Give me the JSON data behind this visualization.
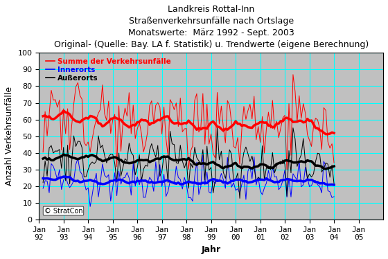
{
  "title_lines": [
    "Landkreis Rottal-Inn",
    "Straßenverkehrsunfälle nach Ortslage",
    "Monatswerte:  März 1992 - Sept. 2003",
    "Original- (Quelle: Bay. LA f. Statistik) u. Trendwerte (eigene Berechnung)"
  ],
  "xlabel": "Jahr",
  "ylabel": "Anzahl Verkehrsunfälle",
  "ylim": [
    0,
    100
  ],
  "yticks": [
    0,
    10,
    20,
    30,
    40,
    50,
    60,
    70,
    80,
    90,
    100
  ],
  "xlim": [
    1992,
    2006
  ],
  "x_ticks": [
    1992,
    1993,
    1994,
    1995,
    1996,
    1997,
    1998,
    1999,
    2000,
    2001,
    2002,
    2003,
    2004,
    2005
  ],
  "plot_bg_color": "#c0c0c0",
  "fig_bg_color": "#ffffff",
  "grid_color": "#00ffff",
  "legend_labels": [
    "Summe der Verkehrsunfälle",
    "Innerorts",
    "Außerorts"
  ],
  "legend_colors": [
    "#ff0000",
    "#0000ff",
    "#000000"
  ],
  "watermark": "© StratCon",
  "title_fontsize": 9,
  "axis_label_fontsize": 9,
  "tick_fontsize": 8
}
